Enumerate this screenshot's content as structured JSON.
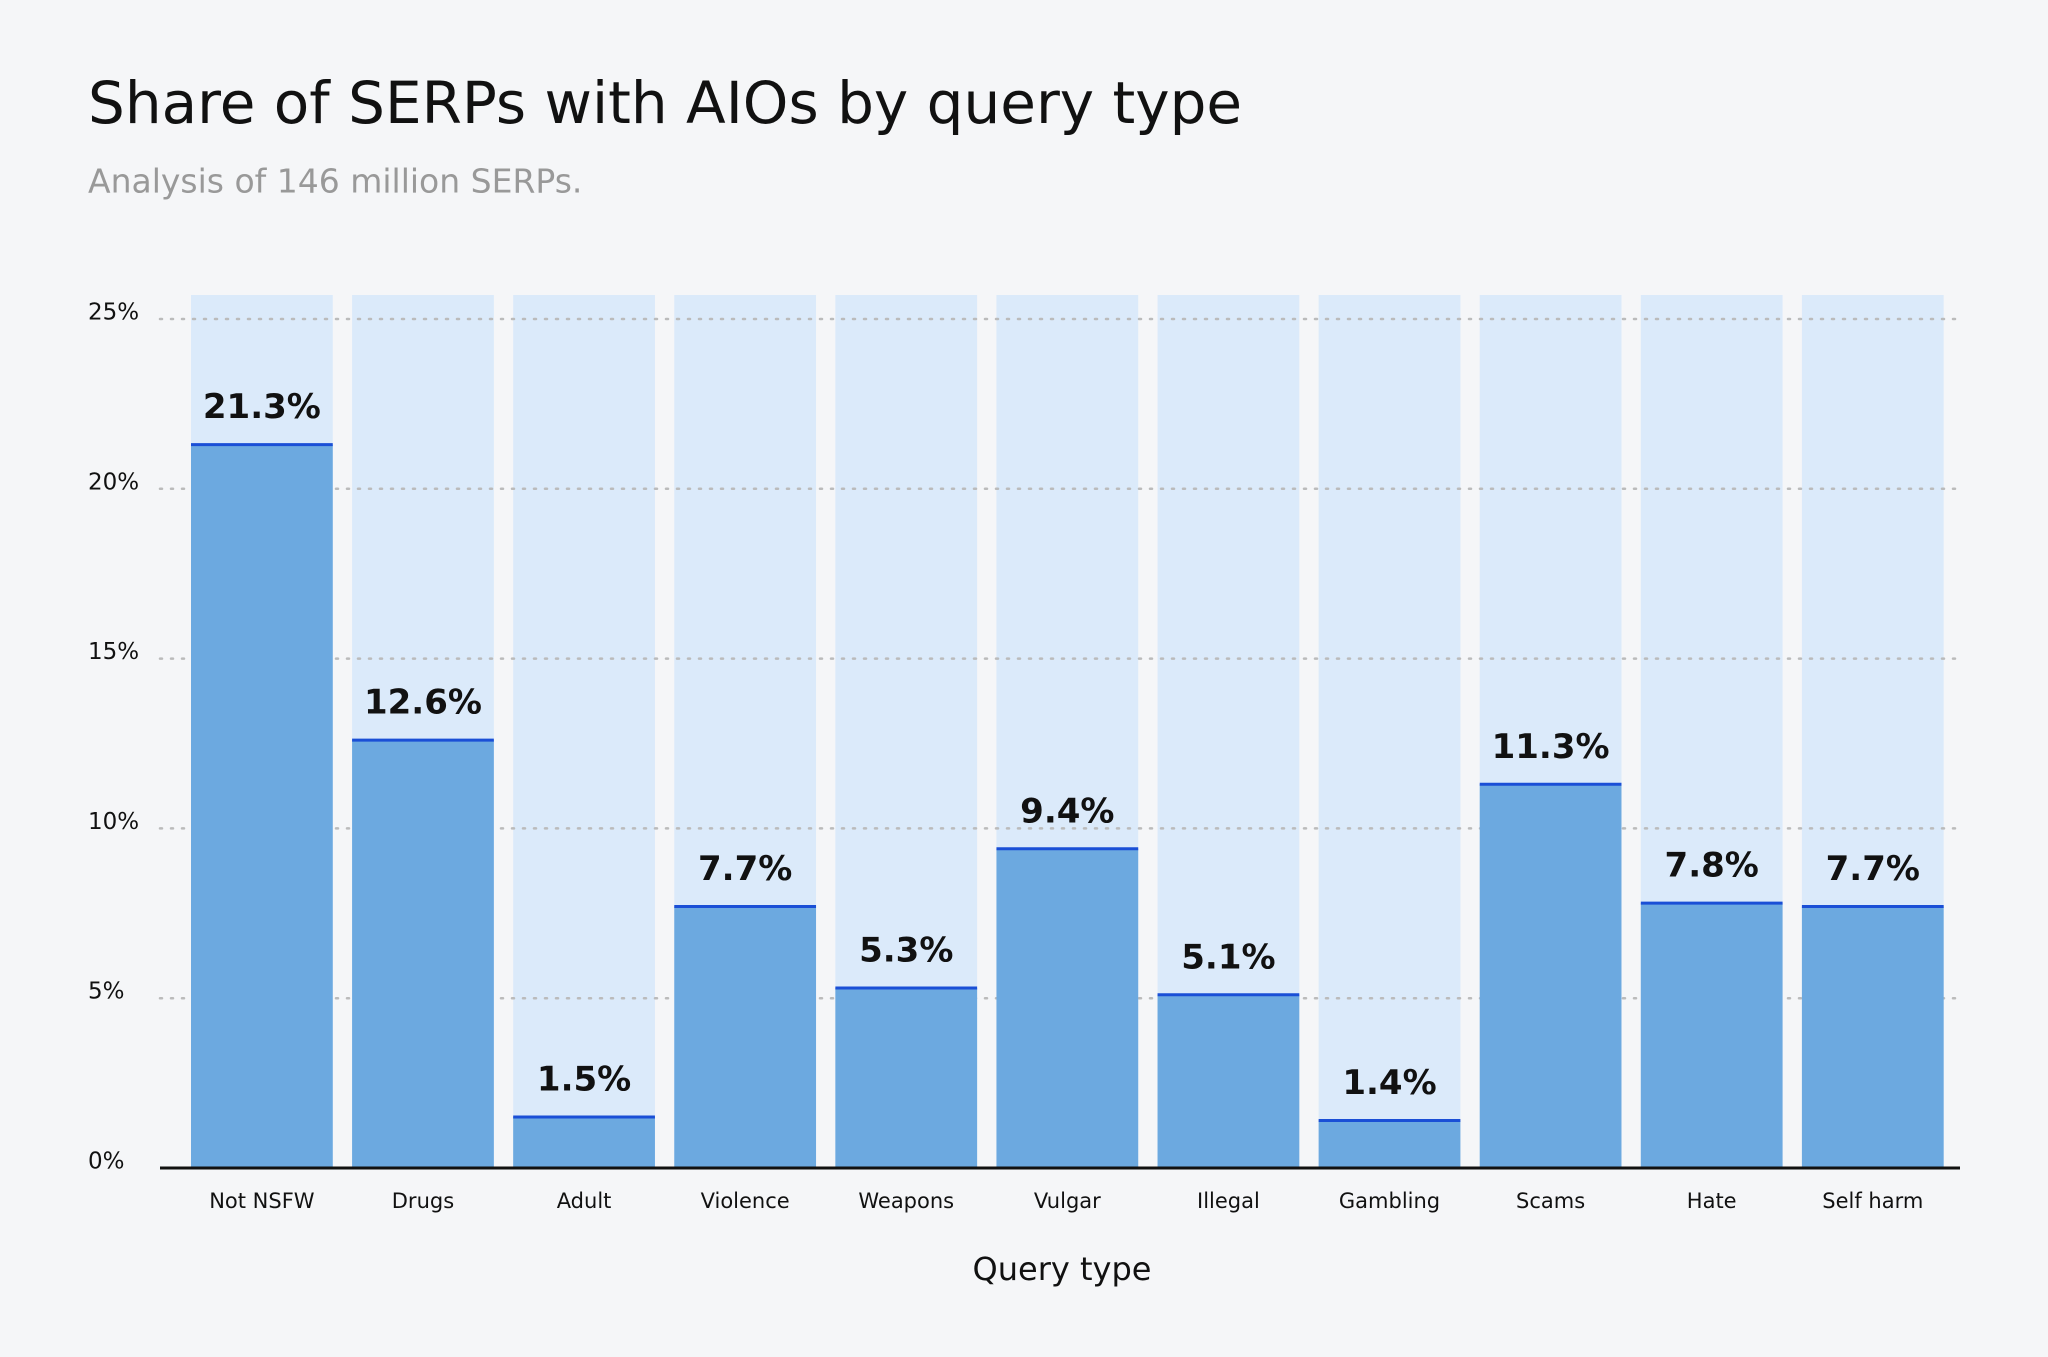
{
  "chart_data": {
    "type": "bar",
    "title": "Share of SERPs with AIOs by query type",
    "subtitle": "Analysis of 146 million SERPs.",
    "x_label": "Query type",
    "categories": [
      "Not NSFW",
      "Drugs",
      "Adult",
      "Violence",
      "Weapons",
      "Vulgar",
      "Illegal",
      "Gambling",
      "Scams",
      "Hate",
      "Self harm"
    ],
    "values": [
      21.3,
      12.6,
      1.5,
      7.7,
      5.3,
      9.4,
      5.1,
      1.4,
      11.3,
      7.8,
      7.7
    ],
    "value_labels": [
      "21.3%",
      "12.6%",
      "1.5%",
      "7.7%",
      "5.3%",
      "9.4%",
      "5.1%",
      "1.4%",
      "11.3%",
      "7.8%",
      "7.7%"
    ],
    "color": "#6ca9e0",
    "ylim": [
      0,
      25
    ],
    "yticks": [
      {
        "value": 0,
        "label": "0%"
      },
      {
        "value": 5,
        "label": "5%"
      },
      {
        "value": 10,
        "label": "10%"
      },
      {
        "value": 15,
        "label": "15%"
      },
      {
        "value": 20,
        "label": "20%"
      },
      {
        "value": 25,
        "label": "25%"
      }
    ],
    "grid": true
  }
}
